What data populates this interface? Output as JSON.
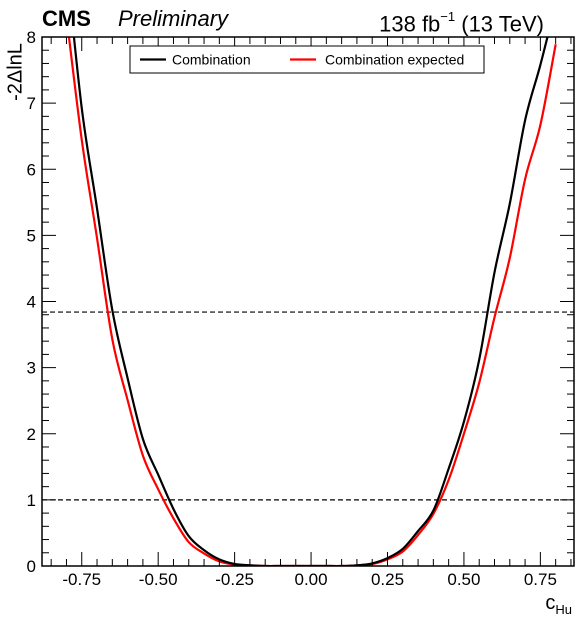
{
  "header": {
    "experiment": "CMS",
    "status": "Preliminary",
    "lumi_value": "138 fb",
    "lumi_exponent": "−1",
    "energy": "(13 TeV)"
  },
  "chart_data": {
    "type": "line",
    "xlabel_main": "c",
    "xlabel_sub": "Hu",
    "ylabel": "-2ΔlnL",
    "xlim": [
      -0.88,
      0.86
    ],
    "ylim": [
      0,
      8
    ],
    "x_ticks": [
      -0.75,
      -0.5,
      -0.25,
      0.0,
      0.25,
      0.5,
      0.75
    ],
    "x_tick_labels": [
      "-0.75",
      "-0.50",
      "-0.25",
      "0.00",
      "0.25",
      "0.50",
      "0.75"
    ],
    "y_ticks": [
      0,
      1,
      2,
      3,
      4,
      5,
      6,
      7,
      8
    ],
    "y_tick_labels": [
      "0",
      "1",
      "2",
      "3",
      "4",
      "5",
      "6",
      "7",
      "8"
    ],
    "reference_lines": [
      1,
      3.84
    ],
    "grid": false,
    "legend_placement": "top-center",
    "series": [
      {
        "name": "Combination",
        "color": "#000000",
        "x": [
          -0.8,
          -0.75,
          -0.7,
          -0.65,
          -0.6,
          -0.55,
          -0.5,
          -0.45,
          -0.4,
          -0.35,
          -0.3,
          -0.25,
          -0.2,
          -0.15,
          -0.1,
          -0.05,
          0.0,
          0.05,
          0.1,
          0.15,
          0.2,
          0.25,
          0.3,
          0.35,
          0.4,
          0.45,
          0.5,
          0.55,
          0.6,
          0.65,
          0.7,
          0.75,
          0.8
        ],
        "y": [
          9.1,
          6.93,
          5.41,
          3.87,
          2.84,
          1.92,
          1.38,
          0.86,
          0.45,
          0.24,
          0.1,
          0.03,
          0.01,
          0.0,
          0.0,
          0.0,
          0.0,
          0.0,
          0.0,
          0.01,
          0.04,
          0.12,
          0.26,
          0.53,
          0.84,
          1.47,
          2.18,
          3.12,
          4.44,
          5.48,
          6.74,
          7.58,
          8.5
        ]
      },
      {
        "name": "Combination expected",
        "color": "#ff0000",
        "x": [
          -0.8,
          -0.75,
          -0.7,
          -0.65,
          -0.6,
          -0.55,
          -0.5,
          -0.45,
          -0.4,
          -0.35,
          -0.3,
          -0.25,
          -0.2,
          -0.15,
          -0.1,
          -0.05,
          0.0,
          0.05,
          0.1,
          0.15,
          0.2,
          0.25,
          0.3,
          0.35,
          0.4,
          0.45,
          0.5,
          0.55,
          0.6,
          0.65,
          0.7,
          0.75,
          0.8
        ],
        "y": [
          8.31,
          6.45,
          4.96,
          3.43,
          2.51,
          1.67,
          1.16,
          0.72,
          0.36,
          0.19,
          0.07,
          0.02,
          0.01,
          0.0,
          0.0,
          0.0,
          0.0,
          0.0,
          0.0,
          0.01,
          0.03,
          0.1,
          0.22,
          0.47,
          0.79,
          1.3,
          2.0,
          2.77,
          3.76,
          4.66,
          5.85,
          6.67,
          7.89
        ]
      }
    ]
  }
}
